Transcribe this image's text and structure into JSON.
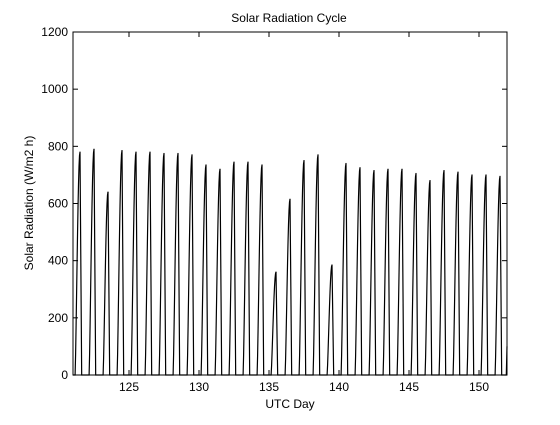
{
  "chart_data": {
    "type": "line",
    "title": "Solar Radiation Cycle",
    "xlabel": "UTC Day",
    "ylabel": "Solar Radiation (W/m2 h)",
    "xlim": [
      121,
      152
    ],
    "ylim": [
      0,
      1200
    ],
    "xticks": [
      125,
      130,
      135,
      140,
      145,
      150
    ],
    "yticks": [
      0,
      200,
      400,
      600,
      800,
      1000,
      1200
    ],
    "grid": false,
    "legend": "none",
    "line_color": "#000000",
    "series": [
      {
        "daily_peaks": [
          {
            "day": 121.5,
            "value": 780
          },
          {
            "day": 122.5,
            "value": 790
          },
          {
            "day": 123.5,
            "value": 640
          },
          {
            "day": 124.5,
            "value": 785
          },
          {
            "day": 125.5,
            "value": 780
          },
          {
            "day": 126.5,
            "value": 780
          },
          {
            "day": 127.5,
            "value": 775
          },
          {
            "day": 128.5,
            "value": 775
          },
          {
            "day": 129.5,
            "value": 770
          },
          {
            "day": 130.5,
            "value": 735
          },
          {
            "day": 131.5,
            "value": 720
          },
          {
            "day": 132.5,
            "value": 745
          },
          {
            "day": 133.5,
            "value": 745
          },
          {
            "day": 134.5,
            "value": 735
          },
          {
            "day": 135.5,
            "value": 360
          },
          {
            "day": 136.5,
            "value": 615
          },
          {
            "day": 137.5,
            "value": 750
          },
          {
            "day": 138.5,
            "value": 770
          },
          {
            "day": 139.5,
            "value": 385
          },
          {
            "day": 140.5,
            "value": 740
          },
          {
            "day": 141.5,
            "value": 725
          },
          {
            "day": 142.5,
            "value": 715
          },
          {
            "day": 143.5,
            "value": 720
          },
          {
            "day": 144.5,
            "value": 720
          },
          {
            "day": 145.5,
            "value": 705
          },
          {
            "day": 146.5,
            "value": 680
          },
          {
            "day": 147.5,
            "value": 715
          },
          {
            "day": 148.5,
            "value": 710
          },
          {
            "day": 149.5,
            "value": 700
          },
          {
            "day": 150.5,
            "value": 700
          },
          {
            "day": 151.5,
            "value": 695
          }
        ]
      }
    ]
  }
}
